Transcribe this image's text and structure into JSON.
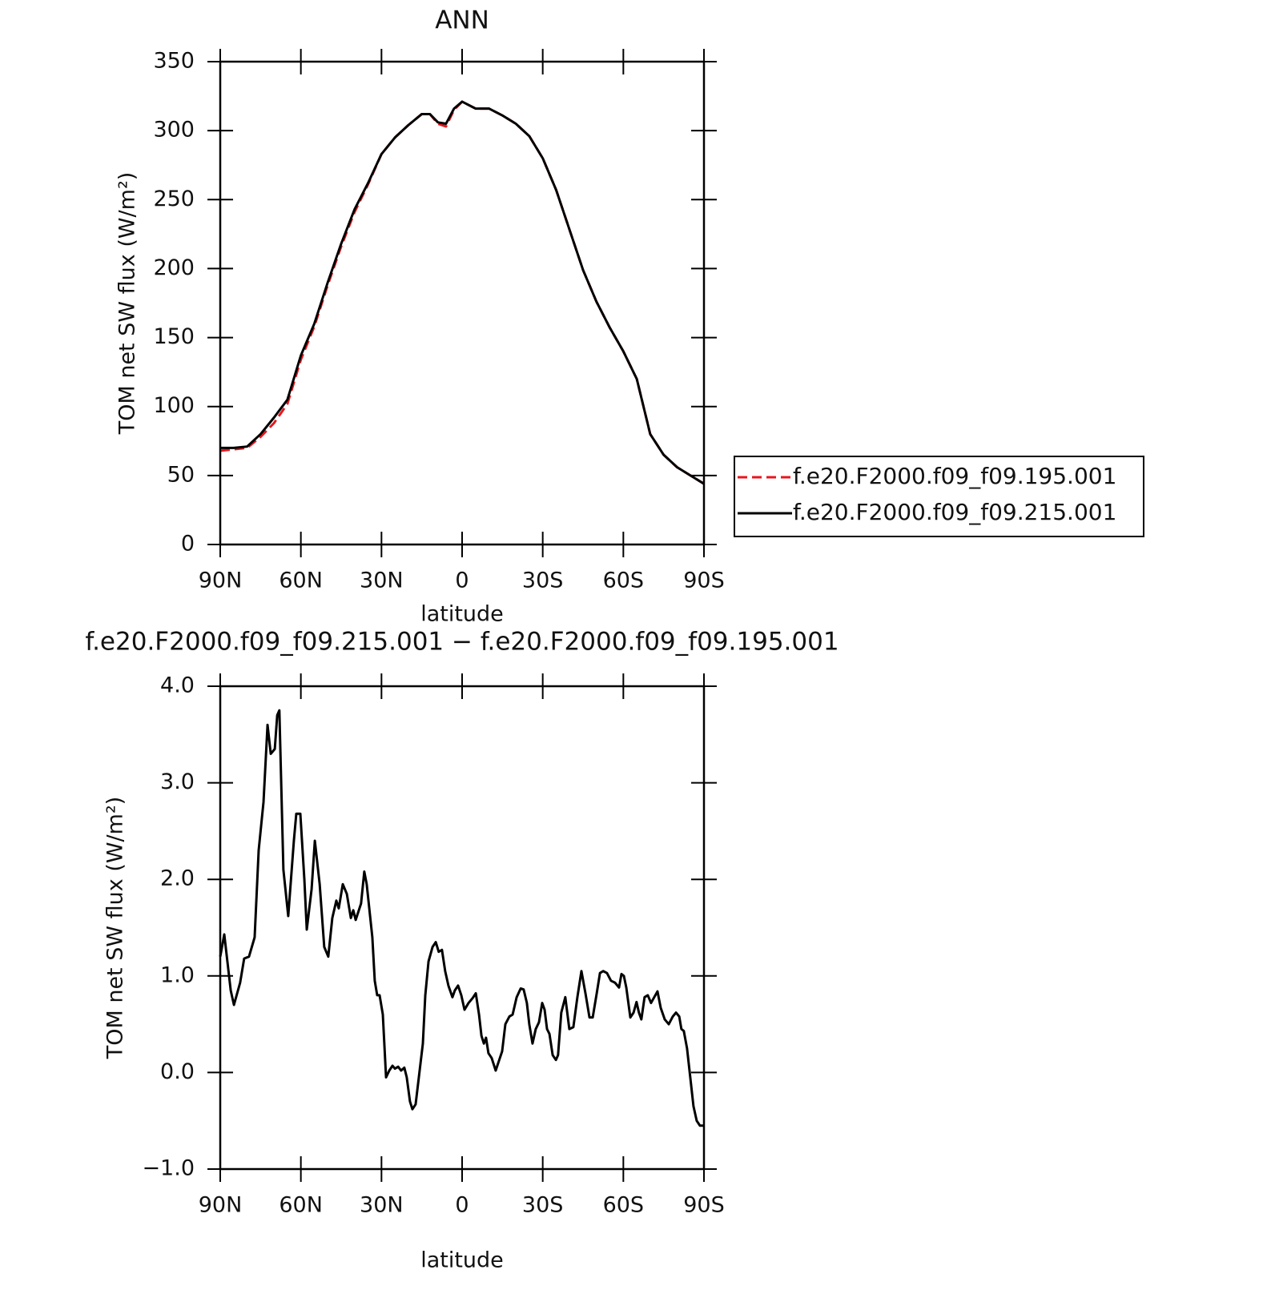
{
  "chart_data": [
    {
      "type": "line",
      "title": "ANN",
      "xlabel": "latitude",
      "ylabel": "TOM net SW flux (W/m²)",
      "x": [
        90,
        85,
        80,
        75,
        70,
        65,
        60,
        55,
        50,
        45,
        40,
        35,
        30,
        25,
        20,
        15,
        12,
        9,
        6,
        3,
        0,
        -5,
        -10,
        -15,
        -20,
        -25,
        -30,
        -35,
        -40,
        -45,
        -50,
        -55,
        -60,
        -65,
        -70,
        -75,
        -80,
        -85,
        -90
      ],
      "series": [
        {
          "name": "f.e20.F2000.f09_f09.195.001",
          "color": "#e8161d",
          "linestyle": "dashed",
          "values": [
            68,
            69,
            70,
            78,
            88,
            102,
            134,
            158,
            188,
            216,
            241,
            261,
            283,
            295,
            304,
            312,
            312,
            305,
            303,
            315,
            321,
            316,
            316,
            311,
            305,
            296,
            280,
            257,
            228,
            199,
            176,
            157,
            140,
            120,
            80,
            65,
            56,
            50,
            44
          ]
        },
        {
          "name": "f.e20.F2000.f09_f09.215.001",
          "color": "#000000",
          "linestyle": "solid",
          "values": [
            70,
            70,
            71,
            80,
            92,
            105,
            137,
            160,
            190,
            218,
            243,
            262,
            283,
            295,
            304,
            312,
            312,
            306,
            305,
            316,
            321,
            316,
            316,
            311,
            305,
            296,
            280,
            257,
            228,
            199,
            176,
            157,
            140,
            120,
            80,
            65,
            56,
            50,
            44
          ]
        }
      ],
      "xlim": [
        90,
        -90
      ],
      "xticks": [
        {
          "value": 90,
          "label": "90N"
        },
        {
          "value": 60,
          "label": "60N"
        },
        {
          "value": 30,
          "label": "30N"
        },
        0,
        {
          "value": -30,
          "label": "30S"
        },
        {
          "value": -60,
          "label": "60S"
        },
        {
          "value": -90,
          "label": "90S"
        }
      ],
      "ylim": [
        0,
        350
      ],
      "yticks": [
        0,
        50,
        100,
        150,
        200,
        250,
        300,
        350
      ],
      "legend": "right"
    },
    {
      "type": "line",
      "title": "f.e20.F2000.f09_f09.215.001 − f.e20.F2000.f09_f09.195.001",
      "xlabel": "latitude",
      "ylabel": "TOM net SW flux (W/m²)",
      "x": [
        90,
        88.5,
        86.1,
        84.9,
        82.6,
        81.1,
        79.3,
        77.2,
        75.7,
        73.9,
        72.4,
        71.2,
        69.7,
        68.8,
        68,
        66.5,
        64.7,
        62.6,
        61.7,
        60.2,
        58.7,
        57.8,
        56,
        54.8,
        53,
        51.3,
        49.8,
        48.3,
        46.8,
        45.9,
        44.4,
        42.9,
        41.4,
        40.5,
        39.6,
        37.6,
        36.4,
        35.5,
        33.4,
        32.5,
        31.6,
        30.7,
        29.5,
        28.3,
        27.1,
        25.9,
        25,
        23.8,
        22.7,
        21.5,
        20.6,
        19.4,
        18.5,
        17.3,
        16.1,
        14.6,
        13.7,
        12.5,
        11,
        9.8,
        8.7,
        7.5,
        6.3,
        5.1,
        3.6,
        2.7,
        1.5,
        0.3,
        -0.9,
        -2.4,
        -3.9,
        -5.1,
        -6.3,
        -7.2,
        -8.1,
        -8.9,
        -9.8,
        -11,
        -12.5,
        -13.7,
        -14.9,
        -16.1,
        -17.6,
        -18.8,
        -20.3,
        -21.8,
        -22.9,
        -24.1,
        -25,
        -26.2,
        -27.4,
        -28.6,
        -29.8,
        -30.7,
        -31.6,
        -32.5,
        -33.7,
        -34.9,
        -35.7,
        -36.9,
        -38.4,
        -39.9,
        -41.4,
        -42.9,
        -44.4,
        -45.9,
        -47.4,
        -48.6,
        -50.1,
        -51.3,
        -52.5,
        -53.9,
        -55.4,
        -56.9,
        -58.4,
        -59.3,
        -60.2,
        -61.1,
        -62.6,
        -63.8,
        -64.9,
        -65.8,
        -66.7,
        -67.9,
        -69.1,
        -70.3,
        -71.5,
        -72.7,
        -73.9,
        -75.4,
        -76.9,
        -78.4,
        -79.6,
        -80.8,
        -81.6,
        -82.5,
        -83.7,
        -84.9,
        -86.1,
        -87.3,
        -88.5,
        -90
      ],
      "series": [
        {
          "color": "#000000",
          "linestyle": "solid",
          "values": [
            1.2,
            1.43,
            0.85,
            0.7,
            0.93,
            1.18,
            1.2,
            1.4,
            2.3,
            2.8,
            3.6,
            3.3,
            3.35,
            3.7,
            3.75,
            2.1,
            1.62,
            2.4,
            2.68,
            2.68,
            2.0,
            1.48,
            1.9,
            2.4,
            1.95,
            1.3,
            1.2,
            1.6,
            1.78,
            1.7,
            1.95,
            1.85,
            1.6,
            1.68,
            1.58,
            1.75,
            2.08,
            1.95,
            1.4,
            0.95,
            0.8,
            0.8,
            0.6,
            -0.05,
            0.02,
            0.07,
            0.04,
            0.06,
            0.02,
            0.05,
            -0.05,
            -0.3,
            -0.38,
            -0.33,
            -0.05,
            0.3,
            0.8,
            1.15,
            1.3,
            1.35,
            1.25,
            1.27,
            1.05,
            0.9,
            0.78,
            0.85,
            0.9,
            0.8,
            0.65,
            0.72,
            0.77,
            0.82,
            0.6,
            0.38,
            0.3,
            0.36,
            0.2,
            0.15,
            0.02,
            0.12,
            0.22,
            0.5,
            0.58,
            0.6,
            0.78,
            0.87,
            0.86,
            0.72,
            0.5,
            0.3,
            0.45,
            0.52,
            0.72,
            0.65,
            0.45,
            0.4,
            0.18,
            0.13,
            0.18,
            0.62,
            0.78,
            0.45,
            0.47,
            0.78,
            1.05,
            0.82,
            0.57,
            0.57,
            0.82,
            1.03,
            1.05,
            1.03,
            0.95,
            0.93,
            0.88,
            1.02,
            1.0,
            0.88,
            0.57,
            0.62,
            0.73,
            0.62,
            0.55,
            0.78,
            0.8,
            0.72,
            0.78,
            0.84,
            0.67,
            0.55,
            0.5,
            0.58,
            0.62,
            0.58,
            0.45,
            0.43,
            0.25,
            -0.05,
            -0.35,
            -0.5,
            -0.55,
            -0.55
          ]
        }
      ],
      "xlim": [
        90,
        -90
      ],
      "xticks": [
        {
          "value": 90,
          "label": "90N"
        },
        {
          "value": 60,
          "label": "60N"
        },
        {
          "value": 30,
          "label": "30N"
        },
        0,
        {
          "value": -30,
          "label": "30S"
        },
        {
          "value": -60,
          "label": "60S"
        },
        {
          "value": -90,
          "label": "90S"
        }
      ],
      "ylim": [
        -1,
        4
      ],
      "yticks": [
        {
          "value": -1,
          "label": "−1.0"
        },
        {
          "value": 0,
          "label": "0.0"
        },
        {
          "value": 1,
          "label": "1.0"
        },
        {
          "value": 2,
          "label": "2.0"
        },
        {
          "value": 3,
          "label": "3.0"
        },
        {
          "value": 4,
          "label": "4.0"
        }
      ]
    }
  ]
}
